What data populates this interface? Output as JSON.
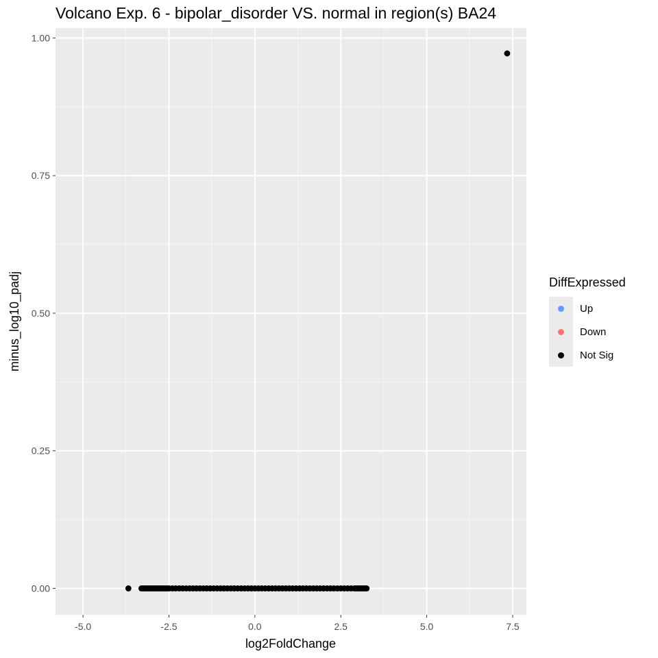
{
  "chart_data": {
    "type": "scatter",
    "title": "Volcano Exp. 6 - bipolar_disorder VS. normal in region(s) BA24",
    "xlabel": "log2FoldChange",
    "ylabel": "minus_log10_padj",
    "xlim": [
      -5.8,
      7.9
    ],
    "ylim": [
      -0.048,
      1.018
    ],
    "x_ticks": [
      -5.0,
      -2.5,
      0.0,
      2.5,
      5.0,
      7.5
    ],
    "x_tick_labels": [
      "-5.0",
      "-2.5",
      "0.0",
      "2.5",
      "5.0",
      "7.5"
    ],
    "y_ticks": [
      0.0,
      0.25,
      0.5,
      0.75,
      1.0
    ],
    "y_tick_labels": [
      "0.00",
      "0.25",
      "0.50",
      "0.75",
      "1.00"
    ],
    "grid": true,
    "legend": {
      "title": "DiffExpressed",
      "placement": "right",
      "entries": [
        {
          "label": "Up",
          "color": "#619cff"
        },
        {
          "label": "Down",
          "color": "#f8766d"
        },
        {
          "label": "Not Sig",
          "color": "#000000"
        }
      ]
    },
    "series": [
      {
        "name": "Not Sig",
        "color": "#000000",
        "points": [
          [
            -3.68,
            0.0
          ],
          [
            -3.3,
            0.0
          ],
          [
            -3.25,
            0.0
          ],
          [
            -3.2,
            0.0
          ],
          [
            -3.15,
            0.0
          ],
          [
            -3.1,
            0.0
          ],
          [
            -3.05,
            0.0
          ],
          [
            -3.0,
            0.0
          ],
          [
            -2.95,
            0.0
          ],
          [
            -2.9,
            0.0
          ],
          [
            -2.85,
            0.0
          ],
          [
            -2.8,
            0.0
          ],
          [
            -2.75,
            0.0
          ],
          [
            -2.7,
            0.0
          ],
          [
            -2.65,
            0.0
          ],
          [
            -2.6,
            0.0
          ],
          [
            -2.55,
            0.0
          ],
          [
            -2.5,
            0.0
          ],
          [
            -2.4,
            0.0
          ],
          [
            -2.3,
            0.0
          ],
          [
            -2.2,
            0.0
          ],
          [
            -2.1,
            0.0
          ],
          [
            -2.0,
            0.0
          ],
          [
            -1.9,
            0.0
          ],
          [
            -1.8,
            0.0
          ],
          [
            -1.7,
            0.0
          ],
          [
            -1.6,
            0.0
          ],
          [
            -1.5,
            0.0
          ],
          [
            -1.4,
            0.0
          ],
          [
            -1.3,
            0.0
          ],
          [
            -1.2,
            0.0
          ],
          [
            -1.1,
            0.0
          ],
          [
            -1.0,
            0.0
          ],
          [
            -0.9,
            0.0
          ],
          [
            -0.8,
            0.0
          ],
          [
            -0.7,
            0.0
          ],
          [
            -0.6,
            0.0
          ],
          [
            -0.5,
            0.0
          ],
          [
            -0.4,
            0.0
          ],
          [
            -0.3,
            0.0
          ],
          [
            -0.2,
            0.0
          ],
          [
            -0.1,
            0.0
          ],
          [
            0.0,
            0.0
          ],
          [
            0.1,
            0.0
          ],
          [
            0.2,
            0.0
          ],
          [
            0.3,
            0.0
          ],
          [
            0.4,
            0.0
          ],
          [
            0.5,
            0.0
          ],
          [
            0.6,
            0.0
          ],
          [
            0.7,
            0.0
          ],
          [
            0.8,
            0.0
          ],
          [
            0.9,
            0.0
          ],
          [
            1.0,
            0.0
          ],
          [
            1.1,
            0.0
          ],
          [
            1.2,
            0.0
          ],
          [
            1.3,
            0.0
          ],
          [
            1.4,
            0.0
          ],
          [
            1.5,
            0.0
          ],
          [
            1.6,
            0.0
          ],
          [
            1.7,
            0.0
          ],
          [
            1.8,
            0.0
          ],
          [
            1.9,
            0.0
          ],
          [
            2.0,
            0.0
          ],
          [
            2.1,
            0.0
          ],
          [
            2.2,
            0.0
          ],
          [
            2.3,
            0.0
          ],
          [
            2.4,
            0.0
          ],
          [
            2.5,
            0.0
          ],
          [
            2.6,
            0.0
          ],
          [
            2.7,
            0.0
          ],
          [
            2.8,
            0.0
          ],
          [
            2.9,
            0.0
          ],
          [
            2.95,
            0.0
          ],
          [
            3.0,
            0.0
          ],
          [
            3.05,
            0.0
          ],
          [
            3.1,
            0.0
          ],
          [
            3.15,
            0.0
          ],
          [
            3.2,
            0.0
          ],
          [
            3.25,
            0.0
          ],
          [
            7.34,
            0.972
          ]
        ]
      }
    ]
  }
}
